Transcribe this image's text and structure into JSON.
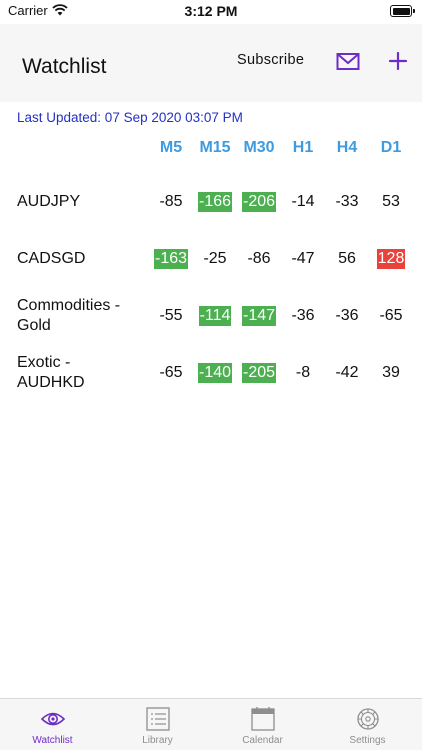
{
  "status_bar": {
    "carrier": "Carrier",
    "time": "3:12 PM"
  },
  "header": {
    "title": "Watchlist",
    "subscribe_label": "Subscribe",
    "mail_icon": "mail-icon",
    "add_icon": "plus-icon"
  },
  "last_updated": "Last Updated: 07 Sep 2020 03:07 PM",
  "columns": [
    "M5",
    "M15",
    "M30",
    "H1",
    "H4",
    "D1"
  ],
  "rows": [
    {
      "label": "AUDJPY",
      "values": [
        "-85",
        "-166",
        "-206",
        "-14",
        "-33",
        "53"
      ],
      "highlight": [
        "",
        "pos",
        "pos",
        "",
        "",
        ""
      ]
    },
    {
      "label": "CADSGD",
      "values": [
        "-163",
        "-25",
        "-86",
        "-47",
        "56",
        "128"
      ],
      "highlight": [
        "pos",
        "",
        "",
        "",
        "",
        "neg"
      ]
    },
    {
      "label": "Commodities - Gold",
      "values": [
        "-55",
        "-114",
        "-147",
        "-36",
        "-36",
        "-65"
      ],
      "highlight": [
        "",
        "pos",
        "pos",
        "",
        "",
        ""
      ]
    },
    {
      "label": "Exotic - AUDHKD",
      "values": [
        "-65",
        "-140",
        "-205",
        "-8",
        "-42",
        "39"
      ],
      "highlight": [
        "",
        "pos",
        "pos",
        "",
        "",
        ""
      ]
    }
  ],
  "colors": {
    "accent": "#6e2ec6",
    "column_header": "#3d9be0",
    "last_updated": "#2431c4",
    "positive_badge": "#4caf50",
    "negative_badge": "#e8423b"
  },
  "tabs": [
    {
      "label": "Watchlist",
      "icon": "eye-icon",
      "active": true
    },
    {
      "label": "Library",
      "icon": "list-icon",
      "active": false
    },
    {
      "label": "Calendar",
      "icon": "calendar-icon",
      "active": false
    },
    {
      "label": "Settings",
      "icon": "gear-icon",
      "active": false
    }
  ]
}
